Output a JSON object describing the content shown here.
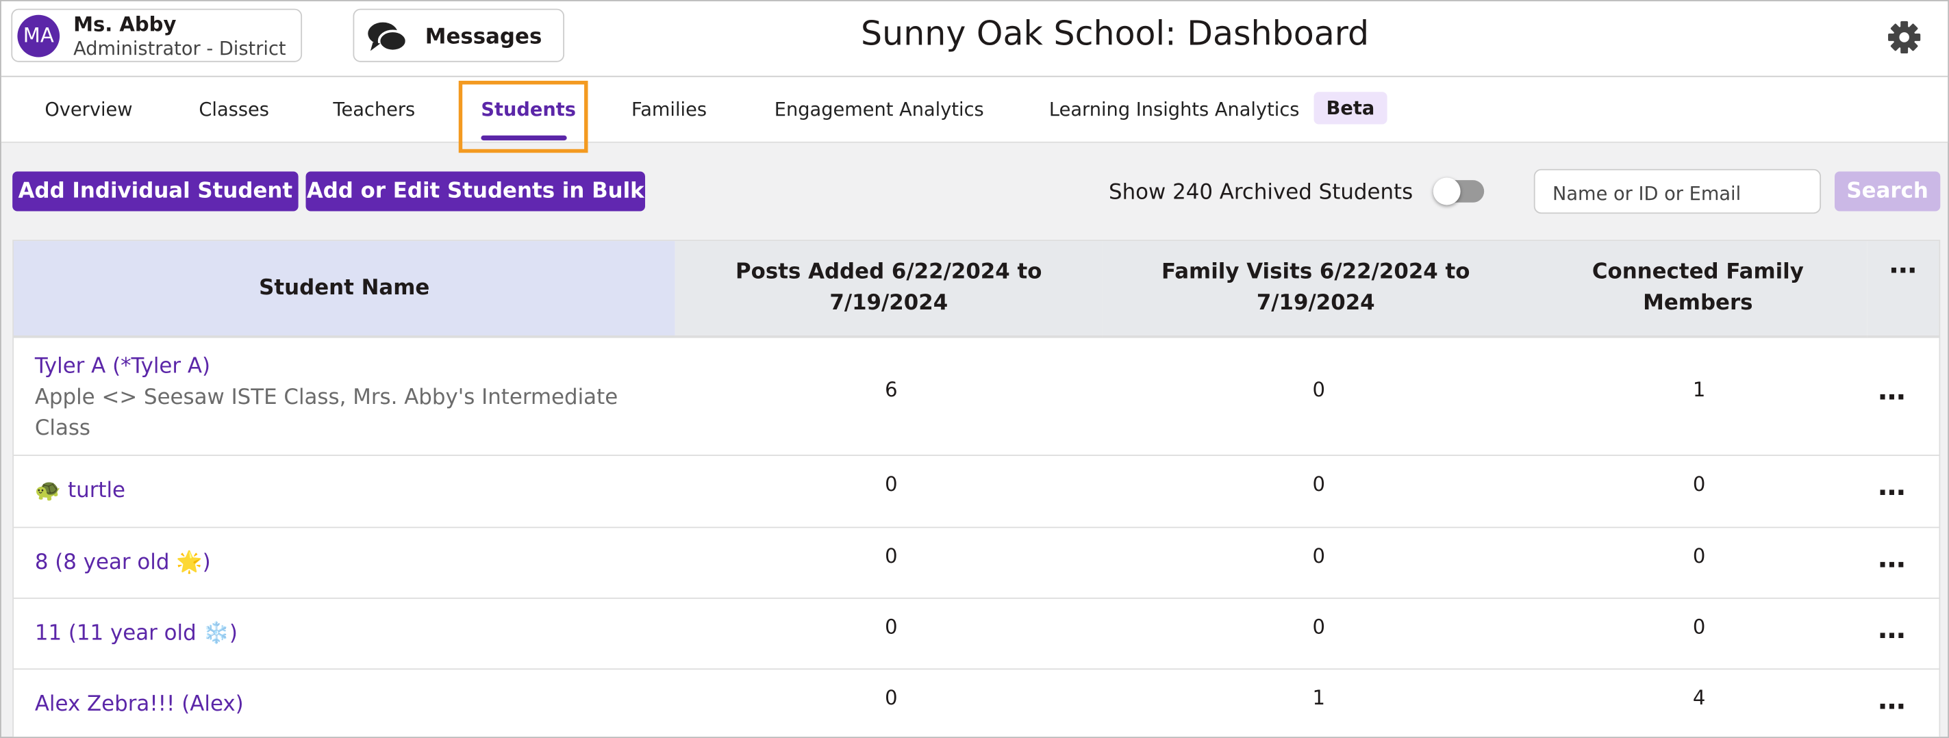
{
  "header": {
    "avatar_initials": "MA",
    "user_name": "Ms. Abby",
    "user_role": "Administrator - District",
    "messages": "Messages",
    "title": "Sunny Oak School: Dashboard"
  },
  "tabs": [
    "Overview",
    "Classes",
    "Teachers",
    "Students",
    "Families",
    "Engagement Analytics",
    "Learning Insights Analytics"
  ],
  "beta_badge": "Beta",
  "toolbar": {
    "add_button": "Add Individual Student",
    "bulk_button": "Add or Edit Students in Bulk",
    "archived_toggle": "Show 240 Archived Students",
    "search_placeholder": "Name or ID  or Email",
    "search_button": "Search"
  },
  "table": {
    "columns": [
      "Student Name",
      "Posts Added 6/22/2024 to 7/19/2024",
      "Family Visits 6/22/2024 to 7/19/2024",
      "Connected Family Members"
    ],
    "rows": [
      {
        "name": "Tyler A (*Tyler A)",
        "classes": "Apple <> Seesaw ISTE Class, Mrs. Abby's Intermediate Class",
        "posts": 6,
        "visits": 0,
        "connected": 1
      },
      {
        "name": "🐢 turtle",
        "posts": 0,
        "visits": 0,
        "connected": 0
      },
      {
        "name": "8 (8 year old 🌟)",
        "posts": 0,
        "visits": 0,
        "connected": 0
      },
      {
        "name": "11 (11 year old ❄️)",
        "posts": 0,
        "visits": 0,
        "connected": 0
      },
      {
        "name": "Alex Zebra!!! (Alex)",
        "posts": 0,
        "visits": 1,
        "connected": 4
      }
    ]
  }
}
